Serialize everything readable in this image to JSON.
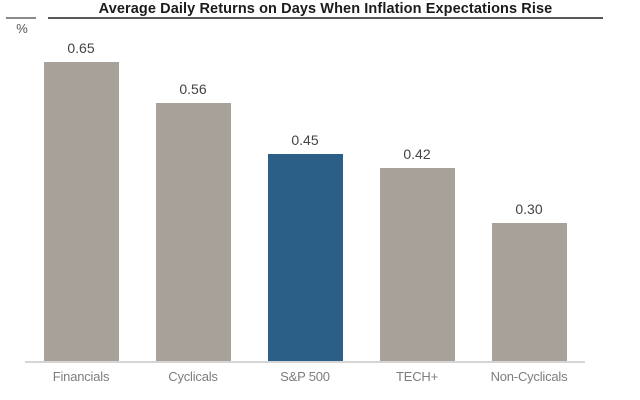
{
  "header": {
    "unit_label": "%"
  },
  "chart_data": {
    "type": "bar",
    "title": "Average Daily Returns on Days When Inflation Expectations Rise",
    "categories": [
      "Financials",
      "Cyclicals",
      "S&P 500",
      "TECH+",
      "Non-Cyclicals"
    ],
    "values": [
      0.65,
      0.56,
      0.45,
      0.42,
      0.3
    ],
    "value_labels": [
      "0.65",
      "0.56",
      "0.45",
      "0.42",
      "0.30"
    ],
    "xlabel": "",
    "ylabel": "%",
    "ylim": [
      0,
      0.75
    ],
    "grid": false,
    "legend": "none",
    "highlight_category": "S&P 500",
    "bar_colors": [
      "#a8a19a",
      "#a8a19a",
      "#2b5f88",
      "#a8a19a",
      "#a8a19a"
    ],
    "colors": {
      "bar_default": "#a8a19a",
      "bar_highlight": "#2b5f88",
      "axis_line": "#d7d5d3",
      "title_rule": "#58585a",
      "value_text": "#444444",
      "category_text": "#7d7d7d"
    }
  }
}
